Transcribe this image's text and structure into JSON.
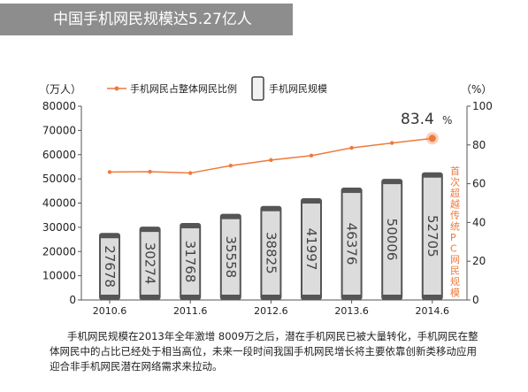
{
  "title": "中国手机网民规模达5.27亿人",
  "note": "手机网民规模在2013年全年激增 8009万之后，潜在手机网民已被大量转化，手机网民在整体网民中的占比已经处于相当高位，未来一段时间我国手机网民增长将主要依靠创新类移动应用迎合非手机网民潜在网络需求来拉动。",
  "colors": {
    "line": "#ee7a3c",
    "bar_body": "#dcdcdc",
    "bar_dark": "#555555",
    "text": "#222222"
  },
  "chart_data": {
    "type": "bar+line",
    "left_unit": "（万人）",
    "right_unit": "（%）",
    "ylim_left": [
      0,
      80000
    ],
    "ylim_right": [
      0,
      100
    ],
    "left_ticks": [
      "80000",
      "70000",
      "60000",
      "50000",
      "40000",
      "30000",
      "20000",
      "10000",
      "0"
    ],
    "right_ticks": [
      "100",
      "80",
      "60",
      "40",
      "20",
      "0"
    ],
    "x_tick_labels": [
      "2010.6",
      "2011.6",
      "2012.6",
      "2013.6",
      "2014.6"
    ],
    "legend": {
      "line": "手机网民占整体网民比例",
      "bar": "手机网民规模"
    },
    "side_label": "首次超越传统PC网民规模",
    "callout_value": "83.4",
    "callout_unit": "%",
    "bar_labels": [
      "27678",
      "30274",
      "31768",
      "35558",
      "38825",
      "41997",
      "46376",
      "50006",
      "52705"
    ],
    "bar_values": [
      27678,
      30274,
      31768,
      35558,
      38825,
      41997,
      46376,
      50006,
      52705
    ],
    "line_values": [
      66.0,
      66.2,
      65.5,
      69.3,
      72.2,
      74.5,
      78.5,
      81.0,
      83.4
    ]
  }
}
